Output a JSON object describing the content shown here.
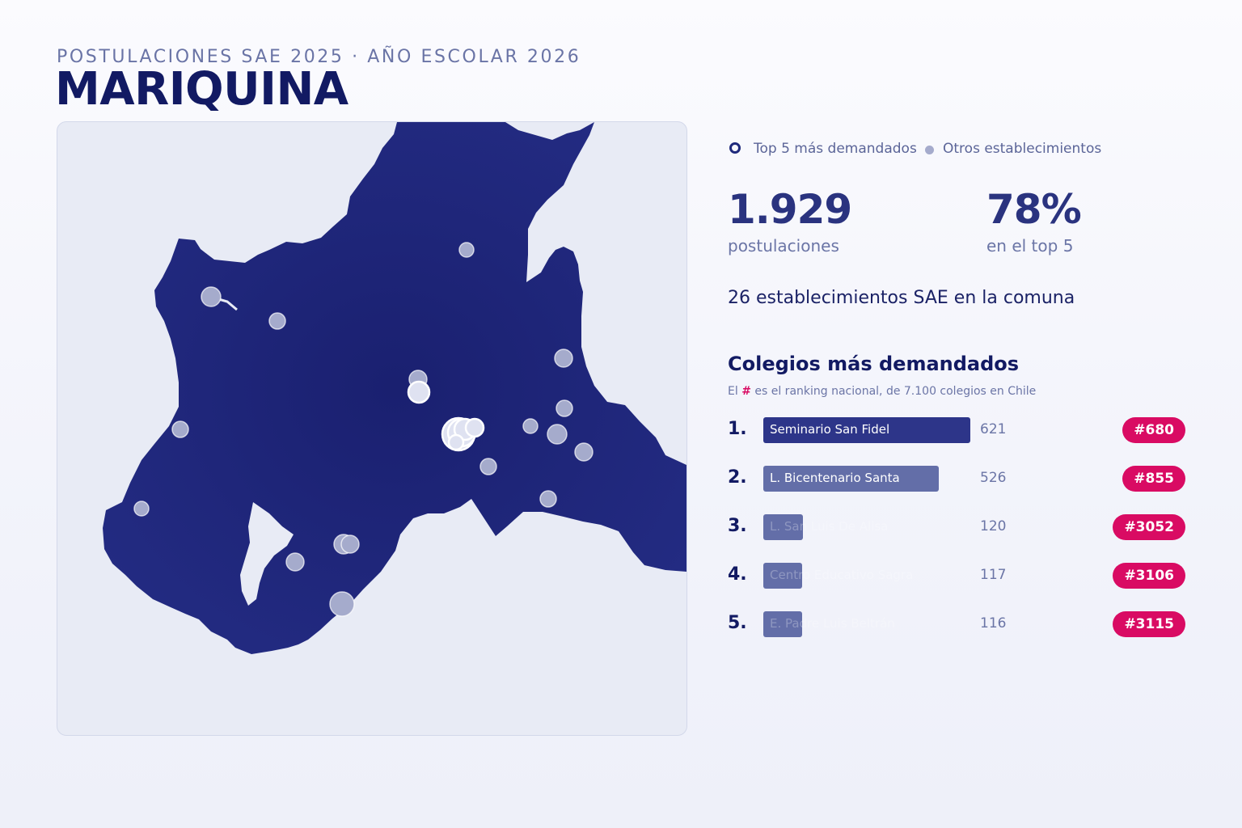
{
  "header": {
    "kicker": "POSTULACIONES SAE 2025 · AÑO ESCOLAR 2026",
    "title": "MARIQUINA"
  },
  "legend": {
    "top5_label": "Top 5 más demandados",
    "others_label": "Otros establecimientos"
  },
  "stats": {
    "applications_value": "1.929",
    "applications_label": "postulaciones",
    "top5_share_value": "78%",
    "top5_share_label": "en el top 5",
    "schools_line": "26 establecimientos SAE en la comuna"
  },
  "ranking": {
    "title": "Colegios más demandados",
    "note_prefix": "El ",
    "note_hash": "#",
    "note_suffix": " es el ranking nacional, de 7.100 colegios en Chile",
    "items": [
      {
        "rank": "1.",
        "name": "Seminario San Fidel",
        "applications": 621,
        "count_label": "621",
        "national_rank": "#680"
      },
      {
        "rank": "2.",
        "name": "L. Bicentenario Santa",
        "applications": 526,
        "count_label": "526",
        "national_rank": "#855"
      },
      {
        "rank": "3.",
        "name": "L. San Luis De Alisa",
        "applications": 120,
        "count_label": "120",
        "national_rank": "#3052"
      },
      {
        "rank": "4.",
        "name": "Centro Educativo Sagra",
        "applications": 117,
        "count_label": "117",
        "national_rank": "#3106"
      },
      {
        "rank": "5.",
        "name": "E. Padre Luis Beltrán",
        "applications": 116,
        "count_label": "116",
        "national_rank": "#3115"
      }
    ]
  },
  "colors": {
    "region_fill": "#1c2278",
    "accent": "#d90b63",
    "primary_bar": "#2d3589",
    "secondary_bar": "#636ea8",
    "marker_fill": "#a5abcc"
  }
}
